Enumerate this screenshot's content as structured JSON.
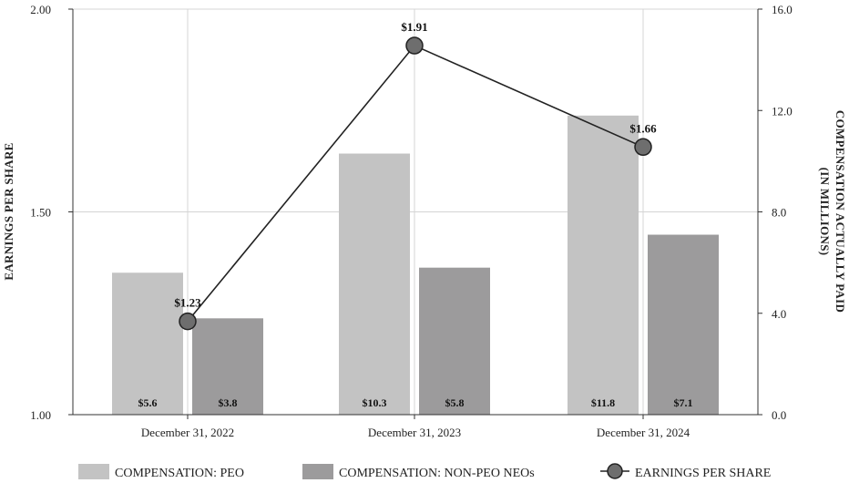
{
  "chart_data": {
    "type": "bar",
    "categories": [
      "December 31, 2022",
      "December 31, 2023",
      "December 31, 2024"
    ],
    "series": [
      {
        "name": "COMPENSATION: PEO",
        "axis": "right",
        "values": [
          5.6,
          10.3,
          11.8
        ],
        "labels": [
          "$5.6",
          "$10.3",
          "$11.8"
        ],
        "color": "#c3c3c3"
      },
      {
        "name": "COMPENSATION: NON-PEO NEOs",
        "axis": "right",
        "values": [
          3.8,
          5.8,
          7.1
        ],
        "labels": [
          "$3.8",
          "$5.8",
          "$7.1"
        ],
        "color": "#9c9b9c"
      },
      {
        "name": "EARNINGS PER SHARE",
        "axis": "left",
        "kind": "line",
        "values": [
          1.23,
          1.91,
          1.66
        ],
        "labels": [
          "$1.23",
          "$1.91",
          "$1.66"
        ],
        "color": "#6e6e6e"
      }
    ],
    "ylabel": "EARNINGS PER SHARE",
    "y2label_line1": "COMPENSATION ACTUALLY PAID",
    "y2label_line2": "(IN MILLIONS)",
    "ylim": [
      1.0,
      2.0
    ],
    "y2lim": [
      0.0,
      16.0
    ],
    "yticks": [
      "1.00",
      "1.50",
      "2.00"
    ],
    "y2ticks": [
      "0.0",
      "4.0",
      "8.0",
      "12.0",
      "16.0"
    ],
    "grid": true,
    "legend_position": "bottom"
  }
}
